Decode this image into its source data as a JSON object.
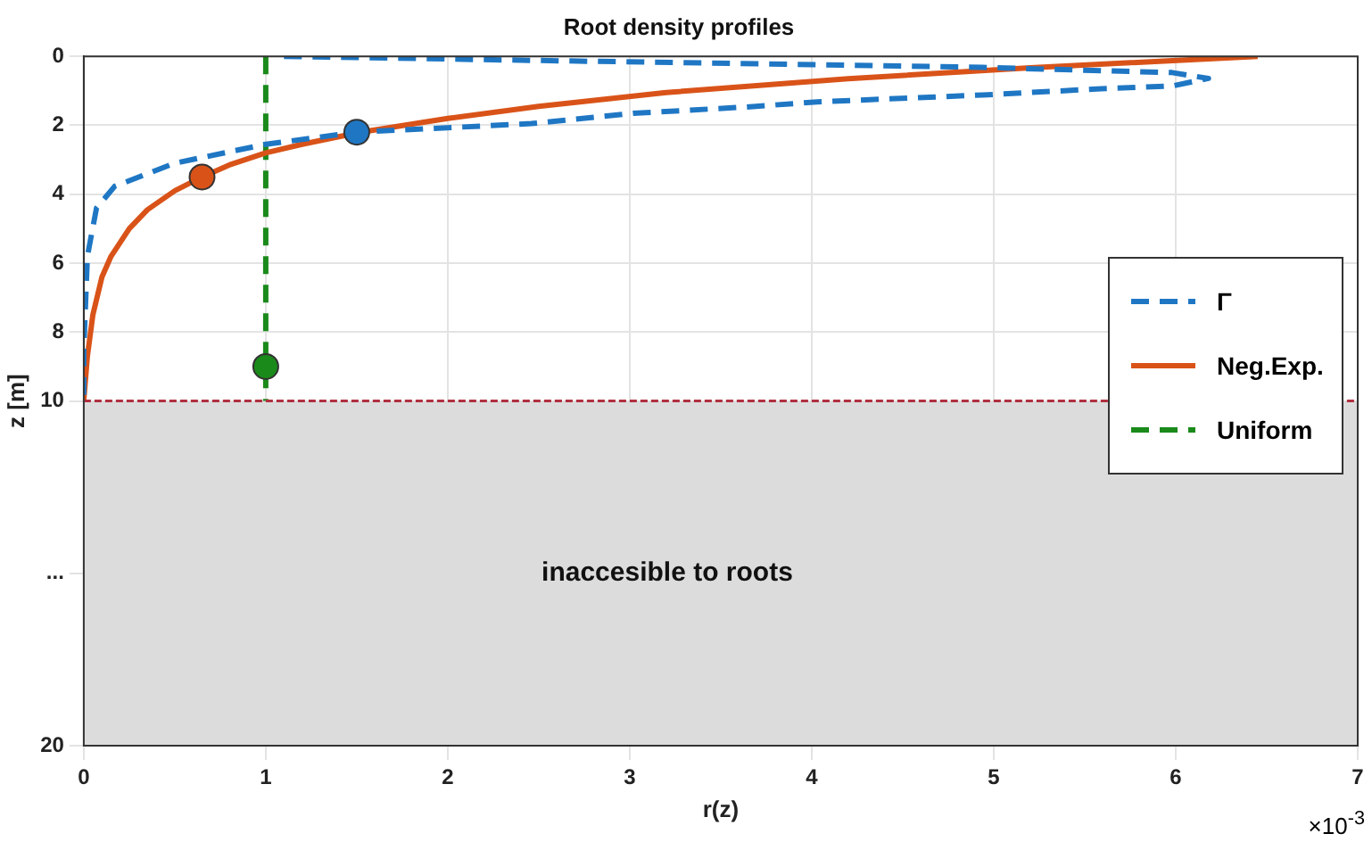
{
  "chart_data": {
    "type": "line",
    "title": "Root density profiles",
    "xlabel": "r(z)",
    "ylabel": "z [m]",
    "xlim": [
      0,
      7
    ],
    "xticks": [
      0,
      1,
      2,
      3,
      4,
      5,
      6,
      7
    ],
    "ylim": [
      20,
      0
    ],
    "yticks": [
      0,
      2,
      4,
      6,
      8,
      10,
      {
        "value": 15,
        "label": "..."
      },
      20
    ],
    "grid": true,
    "legend": "right",
    "series": [
      {
        "name": "Γ",
        "color": "#1f77c4",
        "line_style": "dashed",
        "x": [
          1.1,
          2.5,
          4.03,
          4.94,
          5.98,
          6.18,
          5.98,
          5.59,
          4.94,
          4.03,
          3.64,
          3.02,
          2.46,
          1.5,
          1.0,
          0.5,
          0.17,
          0.07,
          0.02,
          0.0,
          0.0
        ],
        "values": [
          0.0,
          0.12,
          0.24,
          0.32,
          0.47,
          0.64,
          0.86,
          0.94,
          1.12,
          1.32,
          1.47,
          1.65,
          1.95,
          2.2,
          2.55,
          3.1,
          3.77,
          4.4,
          5.8,
          8.5,
          10
        ]
      },
      {
        "name": "Neg.Exp.",
        "color": "#d95319",
        "line_style": "solid",
        "x": [
          6.45,
          5.2,
          4.2,
          3.2,
          2.5,
          2.0,
          1.52,
          1.2,
          1.0,
          0.8,
          0.65,
          0.5,
          0.35,
          0.25,
          0.15,
          0.1,
          0.05,
          0.02,
          0.0
        ],
        "values": [
          0.0,
          0.33,
          0.65,
          1.05,
          1.45,
          1.8,
          2.2,
          2.55,
          2.8,
          3.15,
          3.5,
          3.9,
          4.45,
          5.0,
          5.8,
          6.4,
          7.5,
          8.7,
          10
        ]
      },
      {
        "name": "Uniform",
        "color": "#1a8a1a",
        "line_style": "dashed",
        "x": [
          1,
          1
        ],
        "values": [
          0,
          10
        ]
      },
      {
        "type": "scatter",
        "color": "#1f77c4",
        "marker": "circle",
        "x": [
          1.5
        ],
        "values": [
          2.2
        ]
      },
      {
        "type": "scatter",
        "color": "#d95319",
        "marker": "circle",
        "x": [
          0.65
        ],
        "values": [
          3.5
        ]
      },
      {
        "type": "scatter",
        "color": "#1a8a1a",
        "marker": "circle",
        "x": [
          1.0
        ],
        "values": [
          9.0
        ]
      }
    ],
    "ref_lines": [
      {
        "axis": "y",
        "value": 10,
        "color": "#b03040",
        "line_style": "dashed"
      }
    ],
    "bands": [
      {
        "axis": "y",
        "from": 10,
        "to": 20,
        "label": "inaccesible to roots",
        "color": "#dcdcdc"
      }
    ],
    "annotations": [
      "×10$^{-3}$"
    ]
  }
}
